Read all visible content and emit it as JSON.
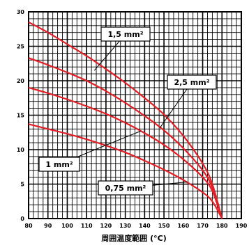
{
  "chart_data": {
    "type": "line",
    "xlabel": "周囲温度範囲 (°C)",
    "ylabel": "",
    "xlim": [
      80,
      190
    ],
    "ylim": [
      0,
      30
    ],
    "x_ticks": [
      "80",
      "90",
      "100",
      "110",
      "120",
      "130",
      "140",
      "150",
      "160",
      "170",
      "180",
      "190"
    ],
    "y_ticks": [
      "0",
      "5",
      "10",
      "15",
      "20",
      "25",
      "30"
    ],
    "grid": true,
    "line_color": "#e31e24",
    "series": [
      {
        "name": "1,5 mm²",
        "points": [
          [
            80,
            28.5
          ],
          [
            90,
            27.0
          ],
          [
            100,
            25.3
          ],
          [
            110,
            23.6
          ],
          [
            120,
            21.7
          ],
          [
            130,
            19.7
          ],
          [
            140,
            17.5
          ],
          [
            150,
            15.1
          ],
          [
            160,
            12.0
          ],
          [
            170,
            8.0
          ],
          [
            175,
            5.0
          ],
          [
            180,
            0
          ]
        ]
      },
      {
        "name": "2,5 mm²",
        "points": [
          [
            80,
            23.3
          ],
          [
            90,
            22.3
          ],
          [
            100,
            21.2
          ],
          [
            110,
            20.0
          ],
          [
            120,
            18.5
          ],
          [
            130,
            16.8
          ],
          [
            140,
            14.9
          ],
          [
            150,
            12.8
          ],
          [
            160,
            10.2
          ],
          [
            170,
            7.0
          ],
          [
            175,
            4.5
          ],
          [
            180,
            0
          ]
        ]
      },
      {
        "name": "1 mm²",
        "points": [
          [
            80,
            19.0
          ],
          [
            90,
            18.2
          ],
          [
            100,
            17.3
          ],
          [
            110,
            16.3
          ],
          [
            120,
            15.2
          ],
          [
            130,
            13.9
          ],
          [
            140,
            12.4
          ],
          [
            150,
            10.7
          ],
          [
            160,
            8.6
          ],
          [
            170,
            6.0
          ],
          [
            175,
            4.0
          ],
          [
            180,
            0
          ]
        ]
      },
      {
        "name": "0,75 mm²",
        "points": [
          [
            80,
            13.7
          ],
          [
            90,
            13.0
          ],
          [
            100,
            12.3
          ],
          [
            110,
            11.5
          ],
          [
            120,
            10.6
          ],
          [
            130,
            9.6
          ],
          [
            140,
            8.4
          ],
          [
            150,
            7.1
          ],
          [
            160,
            5.6
          ],
          [
            170,
            3.8
          ],
          [
            175,
            2.5
          ],
          [
            180,
            0
          ]
        ]
      }
    ],
    "callouts": [
      {
        "label": "1,5 mm²",
        "series": "1,5 mm²",
        "point": [
          114,
          21.5
        ]
      },
      {
        "label": "2,5 mm²",
        "series": "2,5 mm²",
        "point": [
          148,
          13.2
        ]
      },
      {
        "label": "1 mm²",
        "series": "1 mm²",
        "point": [
          138,
          12.7
        ]
      },
      {
        "label": "0,75 mm²",
        "series": "0,75 mm²",
        "point": [
          162,
          5.3
        ]
      }
    ]
  }
}
